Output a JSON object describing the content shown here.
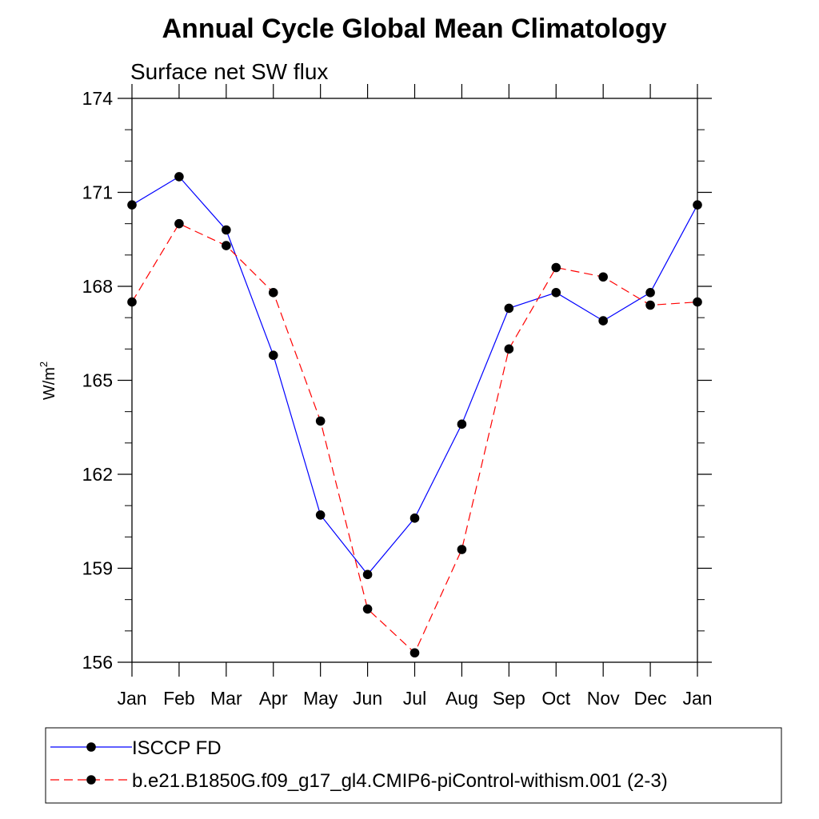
{
  "chart_data": {
    "type": "line",
    "title": "Annual Cycle Global Mean Climatology",
    "subtitle": "Surface net SW flux",
    "ylabel": "W/m",
    "ylabel_sup": "2",
    "categories": [
      "Jan",
      "Feb",
      "Mar",
      "Apr",
      "May",
      "Jun",
      "Jul",
      "Aug",
      "Sep",
      "Oct",
      "Nov",
      "Dec",
      "Jan"
    ],
    "ylim": [
      156,
      174
    ],
    "yticks": [
      "156",
      "159",
      "162",
      "165",
      "168",
      "171",
      "174"
    ],
    "grid": false,
    "legend_position": "bottom",
    "series": [
      {
        "name": "ISCCP FD",
        "color": "#0000ff",
        "dash": "solid",
        "values": [
          170.6,
          171.5,
          169.8,
          165.8,
          160.7,
          158.8,
          160.6,
          163.6,
          167.3,
          167.8,
          166.9,
          167.8,
          170.6
        ]
      },
      {
        "name": "b.e21.B1850G.f09_g17_gl4.CMIP6-piControl-withism.001 (2-3)",
        "color": "#ff0000",
        "dash": "dashed",
        "values": [
          167.5,
          170.0,
          169.3,
          167.8,
          163.7,
          157.7,
          156.3,
          159.6,
          166.0,
          168.6,
          168.3,
          167.4,
          167.5
        ]
      }
    ]
  }
}
